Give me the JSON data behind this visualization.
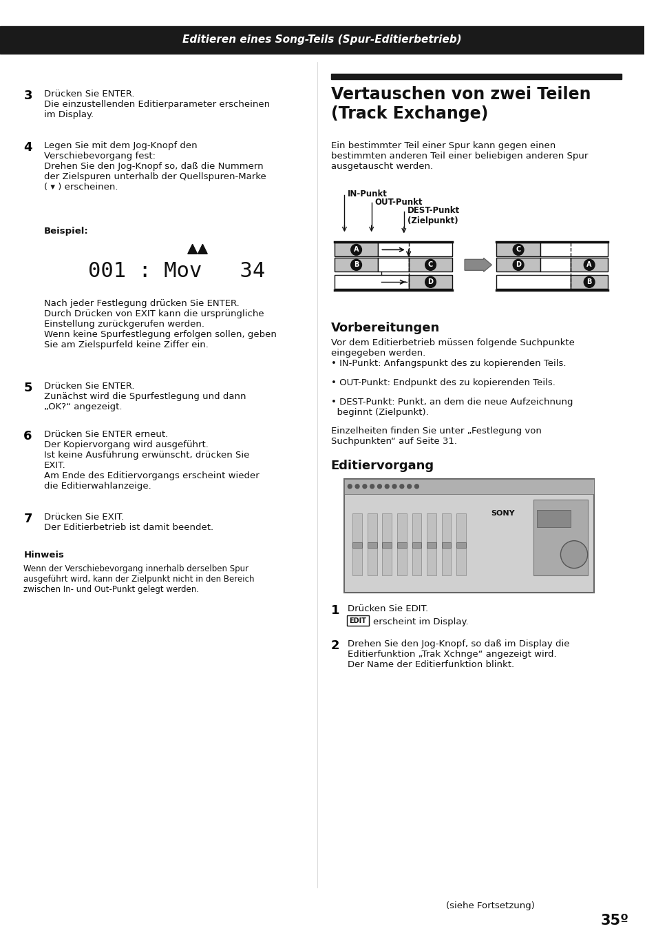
{
  "page_bg": "#ffffff",
  "header_bg": "#1a1a1a",
  "header_text": "Editieren eines Song-Teils (Spur-Editierbetrieb)",
  "header_text_color": "#ffffff",
  "section_bar_color": "#1a1a1a",
  "diagram_gray": "#c0c0c0",
  "step3_num": "3",
  "step4_num": "4",
  "step5_num": "5",
  "step6_num": "6",
  "step7_num": "7",
  "step1_num": "1",
  "step2_num": "2",
  "hinweis_label": "Hinweis",
  "footer_text": "(siehe Fortsetzung)",
  "page_num": "35º",
  "diagram_label_IN": "IN-Punkt",
  "diagram_label_OUT": "OUT-Punkt",
  "diagram_label_DEST": "DEST-Punkt\n(Zielpunkt)"
}
